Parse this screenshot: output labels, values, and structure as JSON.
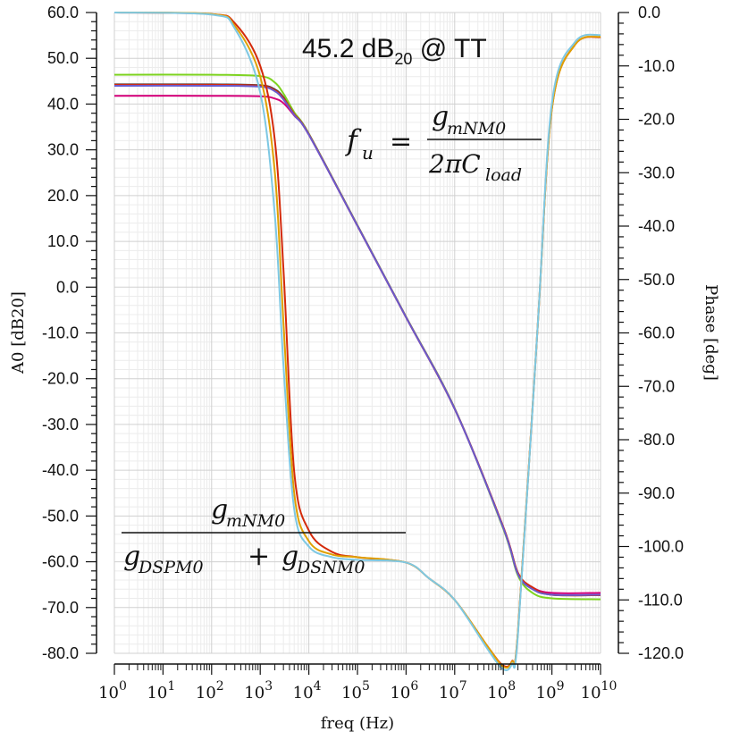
{
  "annotation_title": {
    "main": "45.2 dB",
    "sub": "20",
    "suffix": " @ TT"
  },
  "formula_fu": {
    "lhs_var": "f",
    "lhs_sub": "u",
    "eq": "=",
    "num_var": "g",
    "num_sub": "mNM0",
    "den_pre": "2πC",
    "den_sub": "load"
  },
  "formula_a0": {
    "num_var": "g",
    "num_sub": "mNM0",
    "den_var1": "g",
    "den_sub1": "DSPM0",
    "plus": "+",
    "den_var2": "g",
    "den_sub2": "DSNM0"
  },
  "chart_data": {
    "type": "line",
    "xlabel": "freq (Hz)",
    "ylabel_left": "A0 [dB20]",
    "ylabel_right": "Phase [deg]",
    "x_scale": "log",
    "xlim": [
      1,
      10000000000
    ],
    "ylim_left": [
      -80,
      60
    ],
    "ylim_right": [
      -120,
      0
    ],
    "grid": true,
    "x_ticks": [
      {
        "base": "10",
        "exp": "0"
      },
      {
        "base": "10",
        "exp": "1"
      },
      {
        "base": "10",
        "exp": "2"
      },
      {
        "base": "10",
        "exp": "3"
      },
      {
        "base": "10",
        "exp": "4"
      },
      {
        "base": "10",
        "exp": "5"
      },
      {
        "base": "10",
        "exp": "6"
      },
      {
        "base": "10",
        "exp": "7"
      },
      {
        "base": "10",
        "exp": "8"
      },
      {
        "base": "10",
        "exp": "9"
      },
      {
        "base": "10",
        "exp": "10"
      }
    ],
    "y_ticks_left": [
      "60.0",
      "50.0",
      "40.0",
      "30.0",
      "20.0",
      "10.0",
      "0.0",
      "-10.0",
      "-20.0",
      "-30.0",
      "-40.0",
      "-50.0",
      "-60.0",
      "-70.0",
      "-80.0"
    ],
    "y_ticks_right": [
      "0.0",
      "-10.0",
      "-20.0",
      "-30.0",
      "-40.0",
      "-50.0",
      "-60.0",
      "-70.0",
      "-80.0",
      "-90.0",
      "-100.0",
      "-110.0",
      "-120.0"
    ],
    "series": [
      {
        "color": "#3c3c3c",
        "axis": "left",
        "x": [
          1,
          100,
          1000,
          2000,
          3000,
          5000,
          10000,
          100000,
          1000000,
          10000000,
          100000000,
          200000000,
          400000000,
          1000000000,
          10000000000
        ],
        "y": [
          44.3,
          44.3,
          44.1,
          43.2,
          41.5,
          38.0,
          33.5,
          13.5,
          -6.5,
          -26.5,
          -52.5,
          -62.5,
          -65.8,
          -67.2,
          -67.3
        ]
      },
      {
        "color": "#7ed321",
        "axis": "left",
        "x": [
          1,
          100,
          1000,
          2000,
          3000,
          5000,
          10000,
          100000,
          1000000,
          10000000,
          100000000,
          200000000,
          400000000,
          1000000000,
          10000000000
        ],
        "y": [
          46.4,
          46.4,
          46.1,
          44.7,
          42.3,
          38.2,
          33.5,
          13.5,
          -6.5,
          -26.5,
          -52.8,
          -63.0,
          -66.8,
          -68.0,
          -68.2
        ]
      },
      {
        "color": "#d4007a",
        "axis": "left",
        "x": [
          1,
          100,
          1000,
          2000,
          3000,
          5000,
          10000,
          100000,
          1000000,
          10000000,
          100000000,
          200000000,
          400000000,
          1000000000,
          10000000000
        ],
        "y": [
          41.8,
          41.8,
          41.7,
          41.2,
          40.2,
          37.5,
          33.3,
          13.4,
          -6.6,
          -26.6,
          -52.5,
          -62.6,
          -65.6,
          -66.8,
          -66.8
        ]
      },
      {
        "color": "#d42a0a",
        "axis": "left",
        "x": [
          1,
          100,
          1000,
          2000,
          3000,
          5000,
          10000,
          100000,
          1000000,
          10000000,
          100000000,
          200000000,
          400000000,
          1000000000,
          10000000000
        ],
        "y": [
          44.2,
          44.2,
          44.0,
          43.0,
          41.3,
          37.8,
          33.4,
          13.4,
          -6.6,
          -26.6,
          -52.4,
          -62.4,
          -65.6,
          -67.2,
          -67.3
        ]
      },
      {
        "color": "#6a5acd",
        "axis": "left",
        "x": [
          1,
          100,
          1000,
          2000,
          3000,
          5000,
          10000,
          100000,
          1000000,
          10000000,
          100000000,
          200000000,
          400000000,
          1000000000,
          10000000000
        ],
        "y": [
          44.0,
          44.0,
          43.8,
          42.8,
          41.0,
          37.6,
          33.3,
          13.4,
          -6.6,
          -26.6,
          -52.6,
          -62.7,
          -66.0,
          -67.2,
          -67.2
        ]
      },
      {
        "color": "#d42a0a",
        "axis": "right",
        "x": [
          1,
          100,
          300,
          1000,
          2000,
          3000,
          5000,
          10000,
          30000,
          100000,
          1000000,
          3000000,
          10000000,
          50000000,
          100000000,
          150000000,
          200000000,
          500000000,
          1000000000,
          3000000000,
          10000000000
        ],
        "y": [
          0,
          -0.3,
          -2,
          -10,
          -24,
          -48,
          -86,
          -97,
          -101,
          -102,
          -103,
          -106,
          -110,
          -119,
          -122.3,
          -121.5,
          -116,
          -60,
          -18,
          -6,
          -4.6
        ]
      },
      {
        "color": "#e0a000",
        "axis": "right",
        "x": [
          1,
          100,
          300,
          1000,
          2000,
          3000,
          5000,
          10000,
          30000,
          100000,
          1000000,
          3000000,
          10000000,
          50000000,
          100000000,
          150000000,
          200000000,
          500000000,
          1000000000,
          3000000000,
          10000000000
        ],
        "y": [
          0,
          -0.3,
          -2.5,
          -12,
          -30,
          -58,
          -90,
          -99,
          -101.5,
          -102,
          -103,
          -106,
          -110,
          -119,
          -122.5,
          -121.6,
          -116,
          -60,
          -18,
          -6,
          -4.5
        ]
      },
      {
        "color": "#7ec8e3",
        "axis": "right",
        "x": [
          1,
          100,
          300,
          1000,
          2000,
          3000,
          5000,
          10000,
          30000,
          100000,
          1000000,
          3000000,
          10000000,
          50000000,
          100000000,
          150000000,
          200000000,
          500000000,
          1000000000,
          3000000000,
          10000000000
        ],
        "y": [
          0,
          -0.4,
          -3,
          -15,
          -38,
          -66,
          -93,
          -100,
          -102,
          -102.5,
          -103,
          -106,
          -110,
          -119.5,
          -123,
          -122,
          -116.5,
          -60,
          -17,
          -5.5,
          -4.2
        ]
      }
    ]
  }
}
